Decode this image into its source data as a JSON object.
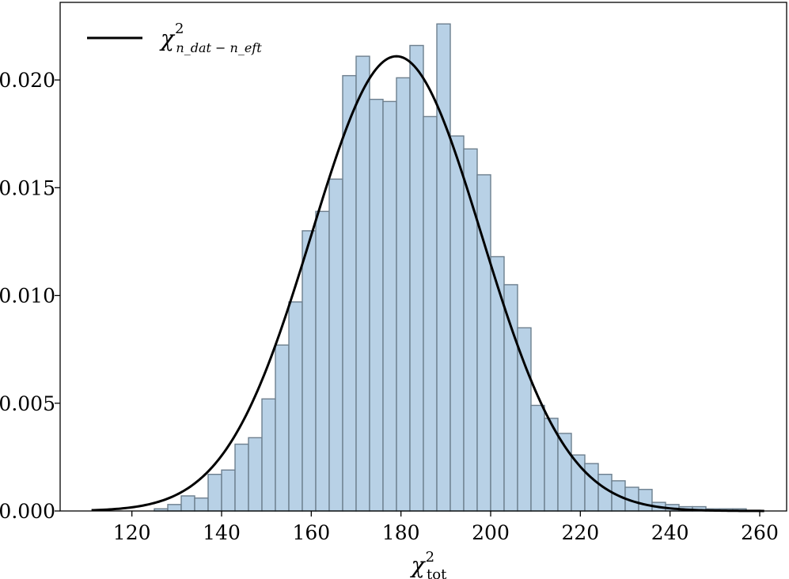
{
  "chart_data": {
    "type": "bar",
    "xlabel": "χ",
    "xlabel_sup": "2",
    "xlabel_sub": "tot",
    "ylabel": "",
    "xlim": [
      104,
      266
    ],
    "ylim": [
      0,
      0.0236
    ],
    "xticks": [
      120,
      140,
      160,
      180,
      200,
      220,
      240,
      260
    ],
    "yticks": [
      0.0,
      0.005,
      0.01,
      0.015,
      0.02
    ],
    "ytick_labels": [
      "0.000",
      "0.005",
      "0.010",
      "0.015",
      "0.020"
    ],
    "bin_width": 3.0,
    "histogram": {
      "bin_starts": [
        125,
        128,
        131,
        134,
        137,
        140,
        143,
        146,
        149,
        152,
        155,
        158,
        161,
        164,
        167,
        170,
        173,
        176,
        179,
        182,
        185,
        188,
        191,
        194,
        197,
        200,
        203,
        206,
        209,
        212,
        215,
        218,
        221,
        224,
        227,
        230,
        233,
        236,
        239,
        242,
        245,
        248,
        251,
        254
      ],
      "values": [
        0.0001,
        0.0003,
        0.0007,
        0.0006,
        0.0017,
        0.0019,
        0.0031,
        0.0034,
        0.0052,
        0.0077,
        0.0097,
        0.013,
        0.0139,
        0.0154,
        0.0202,
        0.0211,
        0.0191,
        0.019,
        0.0201,
        0.0216,
        0.0183,
        0.0226,
        0.0174,
        0.0168,
        0.0156,
        0.0118,
        0.0105,
        0.0085,
        0.0049,
        0.0043,
        0.0036,
        0.0026,
        0.0022,
        0.0017,
        0.0014,
        0.0011,
        0.001,
        0.0004,
        0.0003,
        0.0002,
        0.0002,
        0.0001,
        0.0001,
        0.0001
      ],
      "fill": "#b8d1e6",
      "edge": "#6d7f8e"
    },
    "curve": {
      "type": "line",
      "x_range": [
        111,
        261
      ],
      "peak_x": 179,
      "peak_y": 0.0211,
      "color": "#000000"
    },
    "legend": {
      "position": "top-left",
      "symbol": "χ",
      "sup": "2",
      "sub": "n_dat − n_eft"
    }
  }
}
